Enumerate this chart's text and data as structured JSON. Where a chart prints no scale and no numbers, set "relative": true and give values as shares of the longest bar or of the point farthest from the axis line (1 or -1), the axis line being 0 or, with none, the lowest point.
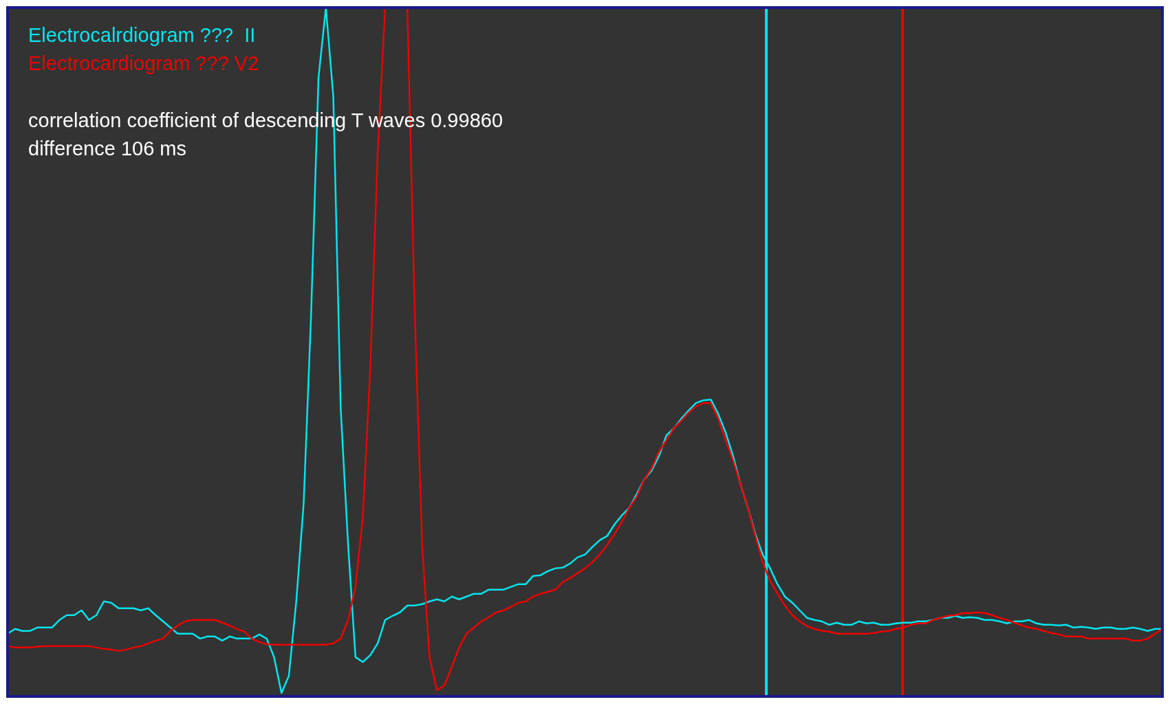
{
  "chart_data": {
    "type": "line",
    "relative": true,
    "legend": "top left",
    "marker": "none",
    "line_style": "solid",
    "categories": [
      null,
      null,
      null,
      null,
      null,
      null,
      null,
      null,
      null,
      null,
      null,
      null,
      null,
      null,
      null,
      null,
      null,
      null,
      null,
      null,
      null,
      null,
      null,
      null,
      null,
      null,
      null,
      null,
      null,
      null,
      null,
      null,
      null,
      null,
      null,
      null,
      null,
      null,
      null,
      null,
      null,
      null,
      null,
      null,
      null,
      null,
      null,
      null,
      null,
      null,
      null,
      null,
      null,
      null,
      null,
      null,
      null,
      null,
      null,
      null,
      null,
      null,
      null,
      null,
      null,
      null,
      null,
      null,
      null,
      null,
      null,
      null,
      null,
      null,
      null,
      null,
      null,
      null,
      null,
      null,
      null,
      null,
      null,
      null,
      null,
      null,
      null,
      null,
      null,
      null,
      null,
      null,
      null,
      null,
      null,
      null,
      null,
      null,
      null,
      null,
      null,
      null,
      null,
      null,
      null,
      null,
      null,
      null,
      null,
      null,
      null,
      null,
      null,
      null,
      null,
      null,
      null,
      null,
      null,
      null,
      null,
      null,
      null,
      null,
      null,
      null,
      null,
      null,
      null,
      null,
      null,
      null,
      null,
      null,
      null,
      null,
      null,
      null,
      null,
      null,
      null,
      null,
      null,
      null,
      null,
      null,
      null,
      null,
      null,
      null,
      null,
      null,
      null,
      null,
      null,
      null,
      null
    ],
    "series": [
      {
        "name": "Electrocalrdiogram ???  II",
        "color": "#00e5ee",
        "values": [
          0.091,
          0.098,
          0.095,
          0.095,
          0.1,
          0.1,
          0.1,
          0.111,
          0.118,
          0.118,
          0.125,
          0.111,
          0.118,
          0.138,
          0.136,
          0.128,
          0.128,
          0.128,
          0.125,
          0.128,
          0.118,
          0.109,
          0.1,
          0.091,
          0.091,
          0.091,
          0.084,
          0.087,
          0.087,
          0.081,
          0.087,
          0.084,
          0.084,
          0.084,
          0.09,
          0.084,
          0.057,
          0.005,
          0.03,
          0.138,
          0.281,
          0.554,
          0.898,
          1,
          0.871,
          0.418,
          0.22,
          0.057,
          0.05,
          0.06,
          0.077,
          0.111,
          0.117,
          0.122,
          0.132,
          0.132,
          0.134,
          0.138,
          0.141,
          0.138,
          0.145,
          0.141,
          0.145,
          0.149,
          0.149,
          0.155,
          0.155,
          0.155,
          0.159,
          0.163,
          0.163,
          0.175,
          0.176,
          0.182,
          0.186,
          0.187,
          0.193,
          0.202,
          0.206,
          0.217,
          0.227,
          0.233,
          0.25,
          0.263,
          0.274,
          0.294,
          0.315,
          0.328,
          0.349,
          0.379,
          0.389,
          0.403,
          0.415,
          0.426,
          0.43,
          0.431,
          0.41,
          0.383,
          0.349,
          0.308,
          0.274,
          0.236,
          0.206,
          0.186,
          0.163,
          0.145,
          0.136,
          0.125,
          0.114,
          0.111,
          0.109,
          0.104,
          0.107,
          0.104,
          0.104,
          0.109,
          0.106,
          0.107,
          0.104,
          0.104,
          0.106,
          0.107,
          0.107,
          0.109,
          0.109,
          0.111,
          0.114,
          0.114,
          0.117,
          0.114,
          0.115,
          0.114,
          0.111,
          0.111,
          0.109,
          0.106,
          0.109,
          0.109,
          0.111,
          0.106,
          0.104,
          0.104,
          0.103,
          0.104,
          0.1,
          0.101,
          0.1,
          0.098,
          0.1,
          0.1,
          0.098,
          0.098,
          0.1,
          0.098,
          0.095,
          0.098,
          0.098
        ]
      },
      {
        "name": "Electrocardiogram ??? V2",
        "color": "#ee0000",
        "values": [
          0.073,
          0.071,
          0.071,
          0.071,
          0.072,
          0.073,
          0.073,
          0.073,
          0.073,
          0.073,
          0.073,
          0.073,
          0.071,
          0.069,
          0.068,
          0.066,
          0.068,
          0.071,
          0.073,
          0.077,
          0.081,
          0.084,
          0.095,
          0.103,
          0.109,
          0.111,
          0.111,
          0.111,
          0.111,
          0.107,
          0.103,
          0.098,
          0.094,
          0.084,
          0.079,
          0.076,
          0.075,
          0.075,
          0.075,
          0.075,
          0.075,
          0.075,
          0.075,
          0.075,
          0.077,
          0.084,
          0.111,
          0.159,
          0.261,
          0.478,
          0.79,
          1,
          null,
          null,
          1,
          0.559,
          0.22,
          0.057,
          0.009,
          0.016,
          0.043,
          0.071,
          0.091,
          0.1,
          0.109,
          0.115,
          0.122,
          0.125,
          0.13,
          0.136,
          0.138,
          0.145,
          0.149,
          0.152,
          0.155,
          0.166,
          0.172,
          0.179,
          0.186,
          0.195,
          0.206,
          0.22,
          0.236,
          0.254,
          0.274,
          0.29,
          0.315,
          0.331,
          0.355,
          0.372,
          0.389,
          0.4,
          0.412,
          0.421,
          0.426,
          0.426,
          0.403,
          0.372,
          0.342,
          0.308,
          0.274,
          0.233,
          0.195,
          0.168,
          0.149,
          0.132,
          0.118,
          0.109,
          0.102,
          0.098,
          0.095,
          0.094,
          0.091,
          0.091,
          0.091,
          0.091,
          0.091,
          0.092,
          0.094,
          0.095,
          0.098,
          0.1,
          0.104,
          0.106,
          0.106,
          0.111,
          0.114,
          0.117,
          0.118,
          0.121,
          0.121,
          0.122,
          0.121,
          0.118,
          0.114,
          0.111,
          0.107,
          0.103,
          0.1,
          0.098,
          0.095,
          0.092,
          0.09,
          0.087,
          0.087,
          0.087,
          0.084,
          0.084,
          0.084,
          0.084,
          0.084,
          0.084,
          0.081,
          0.081,
          0.084,
          0.091,
          0.098
        ]
      }
    ],
    "annotations": [
      "correlation coefficient of descending T waves 0.99860",
      "difference 106 ms"
    ]
  }
}
